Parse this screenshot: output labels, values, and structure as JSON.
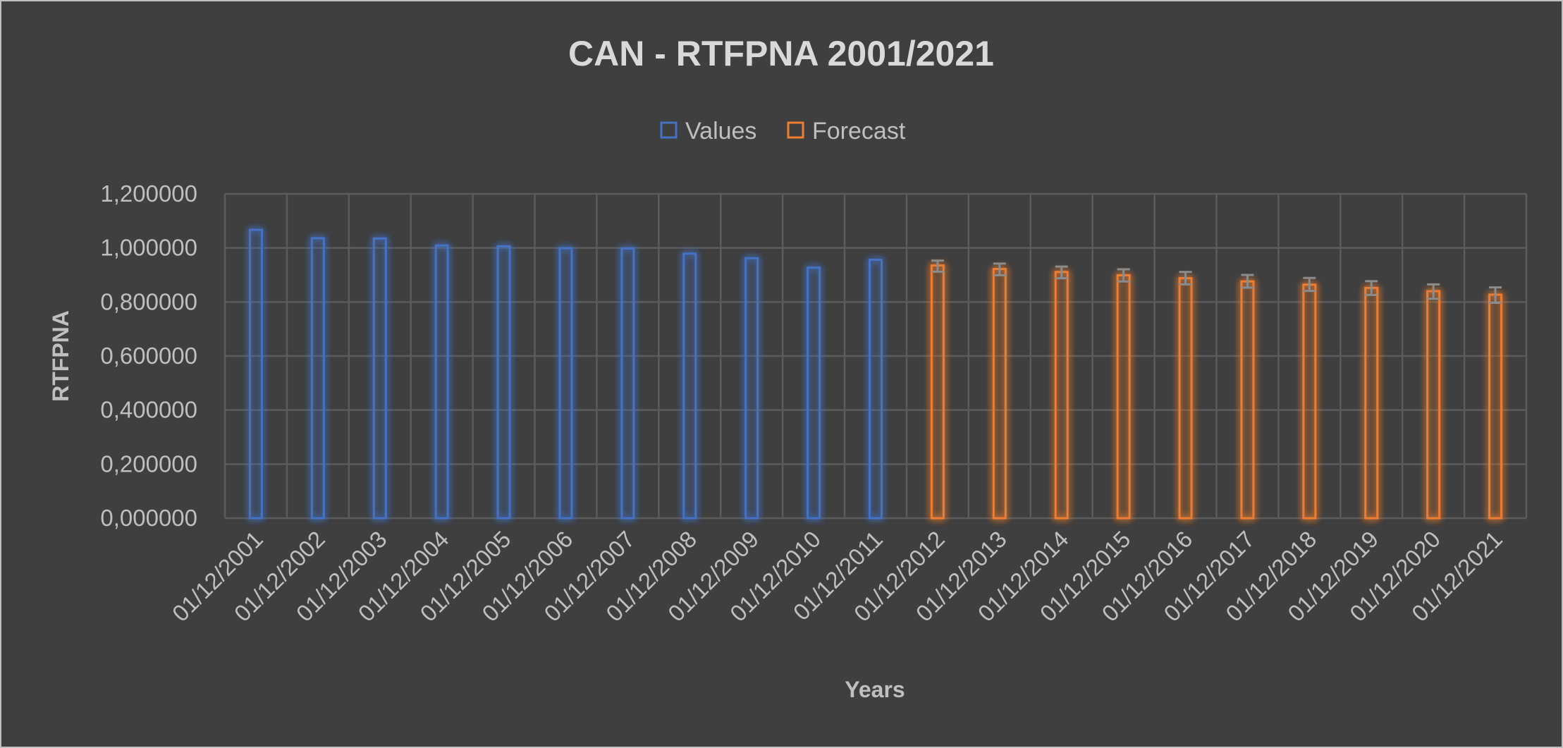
{
  "chart_data": {
    "type": "bar",
    "title": "CAN - RTFPNA 2001/2021",
    "xlabel": "Years",
    "ylabel": "RTFPNA",
    "ylim": [
      0,
      1.2
    ],
    "y_ticks": [
      "0,000000",
      "0,200000",
      "0,400000",
      "0,600000",
      "0,800000",
      "1,000000",
      "1,200000"
    ],
    "grid": true,
    "legend_position": "top",
    "categories": [
      "01/12/2001",
      "01/12/2002",
      "01/12/2003",
      "01/12/2004",
      "01/12/2005",
      "01/12/2006",
      "01/12/2007",
      "01/12/2008",
      "01/12/2009",
      "01/12/2010",
      "01/12/2011",
      "01/12/2012",
      "01/12/2013",
      "01/12/2014",
      "01/12/2015",
      "01/12/2016",
      "01/12/2017",
      "01/12/2018",
      "01/12/2019",
      "01/12/2020",
      "01/12/2021"
    ],
    "series": [
      {
        "name": "Values",
        "color": "#4472c4",
        "values": [
          1.067,
          1.036,
          1.035,
          1.009,
          1.006,
          0.999,
          0.998,
          0.979,
          0.962,
          0.927,
          0.956,
          null,
          null,
          null,
          null,
          null,
          null,
          null,
          null,
          null,
          null
        ]
      },
      {
        "name": "Forecast",
        "color": "#ed7d31",
        "values": [
          null,
          null,
          null,
          null,
          null,
          null,
          null,
          null,
          null,
          null,
          null,
          0.935,
          0.922,
          0.911,
          0.899,
          0.888,
          0.876,
          0.864,
          0.852,
          0.84,
          0.827
        ],
        "error_low": [
          null,
          null,
          null,
          null,
          null,
          null,
          null,
          null,
          null,
          null,
          null,
          0.912,
          0.899,
          0.888,
          0.876,
          0.865,
          0.853,
          0.841,
          0.826,
          0.812,
          0.797
        ],
        "error_high": [
          null,
          null,
          null,
          null,
          null,
          null,
          null,
          null,
          null,
          null,
          null,
          0.953,
          0.942,
          0.931,
          0.921,
          0.911,
          0.9,
          0.889,
          0.877,
          0.865,
          0.854
        ]
      }
    ],
    "error_bar_color": "#8c8c8c"
  }
}
